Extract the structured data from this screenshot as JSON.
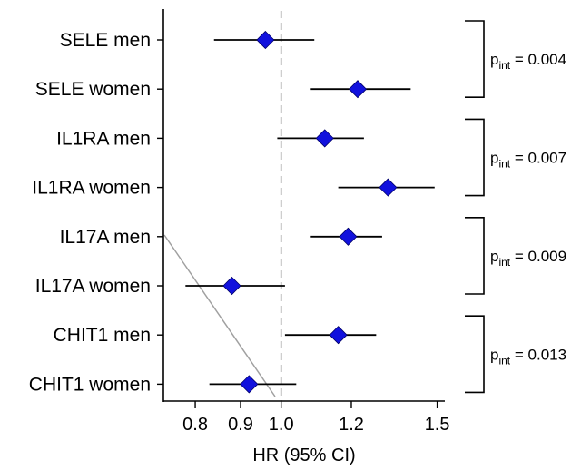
{
  "chart_data": {
    "type": "forest",
    "xlabel": "HR (95% CI)",
    "x_scale": "log",
    "xlim": [
      0.74,
      1.53
    ],
    "reference_value": 1.0,
    "x_ticks": [
      {
        "value": 0.8,
        "label": "0.8"
      },
      {
        "value": 0.9,
        "label": "0.9"
      },
      {
        "value": 1.0,
        "label": "1.0"
      },
      {
        "value": 1.2,
        "label": "1.2"
      },
      {
        "value": 1.5,
        "label": "1.5"
      }
    ],
    "rows": [
      {
        "label": "SELE men",
        "hr": 0.96,
        "lower": 0.84,
        "upper": 1.09
      },
      {
        "label": "SELE women",
        "hr": 1.22,
        "lower": 1.08,
        "upper": 1.4
      },
      {
        "label": "IL1RA men",
        "hr": 1.12,
        "lower": 0.99,
        "upper": 1.24
      },
      {
        "label": "IL1RA women",
        "hr": 1.32,
        "lower": 1.16,
        "upper": 1.49
      },
      {
        "label": "IL17A men",
        "hr": 1.19,
        "lower": 1.08,
        "upper": 1.3
      },
      {
        "label": "IL17A women",
        "hr": 0.88,
        "lower": 0.78,
        "upper": 1.01
      },
      {
        "label": "CHIT1 men",
        "hr": 1.16,
        "lower": 1.01,
        "upper": 1.28
      },
      {
        "label": "CHIT1 women",
        "hr": 0.92,
        "lower": 0.83,
        "upper": 1.04
      }
    ],
    "interactions": [
      {
        "rows": [
          0,
          1
        ],
        "p_base": "p",
        "p_sub": "int",
        "p_value": " = 0.004"
      },
      {
        "rows": [
          2,
          3
        ],
        "p_base": "p",
        "p_sub": "int",
        "p_value": " = 0.007"
      },
      {
        "rows": [
          4,
          5
        ],
        "p_base": "p",
        "p_sub": "int",
        "p_value": " = 0.009"
      },
      {
        "rows": [
          6,
          7
        ],
        "p_base": "p",
        "p_sub": "int",
        "p_value": " = 0.013"
      }
    ],
    "colors": {
      "marker": "#1111dd",
      "ci_line": "#000000",
      "reference_line": "#999999",
      "stray_line": "#a0a0a0"
    }
  }
}
